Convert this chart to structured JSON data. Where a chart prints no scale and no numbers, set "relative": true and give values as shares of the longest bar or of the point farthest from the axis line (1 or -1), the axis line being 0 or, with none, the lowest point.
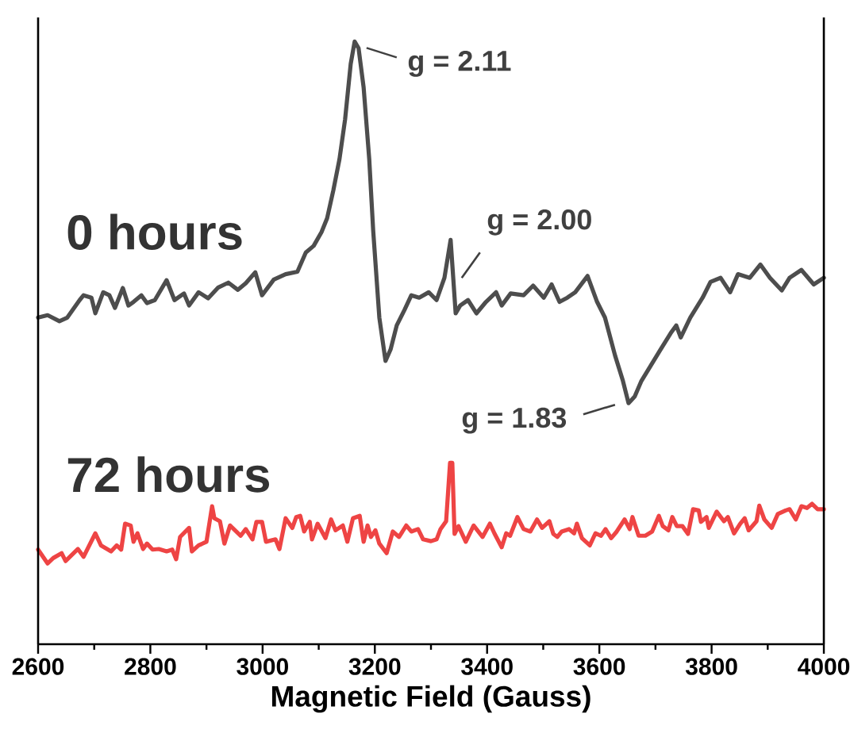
{
  "chart_data": {
    "type": "line",
    "xlabel": "Magnetic Field (Gauss)",
    "relative": true,
    "line_style": "solid",
    "marker": "none",
    "xlim": [
      2600,
      4000
    ],
    "xticks": [
      2600,
      {
        "value": 2700,
        "label": null
      },
      2800,
      {
        "value": 2900,
        "label": null
      },
      3000,
      {
        "value": 3100,
        "label": null
      },
      3200,
      {
        "value": 3300,
        "label": null
      },
      3400,
      {
        "value": 3500,
        "label": null
      },
      3600,
      {
        "value": 3700,
        "label": null
      },
      3800,
      {
        "value": 3900,
        "label": null
      },
      4000
    ],
    "series": [
      {
        "name": "0 hours",
        "color": "#4d4d4d",
        "x": [
          2600,
          2617,
          2638,
          2652,
          2674,
          2681,
          2695,
          2702,
          2716,
          2727,
          2737,
          2751,
          2761,
          2770,
          2784,
          2794,
          2808,
          2829,
          2843,
          2860,
          2869,
          2886,
          2903,
          2921,
          2939,
          2956,
          2970,
          2987,
          2999,
          3020,
          3041,
          3062,
          3077,
          3091,
          3105,
          3115,
          3126,
          3137,
          3147,
          3157,
          3164,
          3171,
          3180,
          3190,
          3197,
          3208,
          3219,
          3228,
          3239,
          3253,
          3265,
          3279,
          3296,
          3310,
          3324,
          3335,
          3344,
          3352,
          3366,
          3381,
          3398,
          3416,
          3426,
          3442,
          3465,
          3482,
          3501,
          3515,
          3529,
          3543,
          3557,
          3579,
          3596,
          3610,
          3628,
          3642,
          3652,
          3663,
          3675,
          3692,
          3709,
          3727,
          3737,
          3745,
          3762,
          3784,
          3798,
          3816,
          3833,
          3847,
          3868,
          3887,
          3904,
          3925,
          3939,
          3960,
          3982,
          4000
        ],
        "values": [
          0.542,
          0.546,
          0.536,
          0.542,
          0.571,
          0.579,
          0.575,
          0.549,
          0.584,
          0.579,
          0.558,
          0.591,
          0.562,
          0.568,
          0.579,
          0.566,
          0.571,
          0.604,
          0.571,
          0.582,
          0.562,
          0.584,
          0.574,
          0.592,
          0.6,
          0.588,
          0.599,
          0.617,
          0.579,
          0.605,
          0.614,
          0.618,
          0.65,
          0.661,
          0.684,
          0.707,
          0.753,
          0.805,
          0.871,
          0.963,
          1.0,
          0.989,
          0.924,
          0.805,
          0.687,
          0.542,
          0.47,
          0.489,
          0.529,
          0.555,
          0.579,
          0.575,
          0.584,
          0.571,
          0.608,
          0.671,
          0.549,
          0.562,
          0.571,
          0.549,
          0.568,
          0.584,
          0.562,
          0.582,
          0.579,
          0.595,
          0.575,
          0.597,
          0.568,
          0.575,
          0.584,
          0.611,
          0.568,
          0.542,
          0.479,
          0.437,
          0.4,
          0.411,
          0.437,
          0.463,
          0.489,
          0.516,
          0.529,
          0.509,
          0.542,
          0.575,
          0.601,
          0.608,
          0.584,
          0.614,
          0.608,
          0.63,
          0.608,
          0.587,
          0.608,
          0.621,
          0.597,
          0.608
        ]
      },
      {
        "name": "72 hours",
        "color": "#ee4444",
        "x": [
          2600,
          2617,
          2627,
          2642,
          2649,
          2671,
          2681,
          2702,
          2712,
          2730,
          2740,
          2748,
          2755,
          2765,
          2770,
          2777,
          2787,
          2794,
          2804,
          2815,
          2829,
          2839,
          2846,
          2853,
          2869,
          2874,
          2886,
          2900,
          2910,
          2914,
          2924,
          2932,
          2942,
          2961,
          2970,
          2982,
          2989,
          2999,
          3006,
          3023,
          3030,
          3041,
          3053,
          3060,
          3067,
          3074,
          3084,
          3088,
          3098,
          3112,
          3122,
          3130,
          3143,
          3151,
          3161,
          3173,
          3180,
          3187,
          3193,
          3201,
          3208,
          3221,
          3232,
          3243,
          3256,
          3265,
          3277,
          3286,
          3300,
          3310,
          3317,
          3327,
          3334,
          3338,
          3342,
          3349,
          3362,
          3376,
          3392,
          3405,
          3413,
          3426,
          3434,
          3441,
          3454,
          3465,
          3477,
          3489,
          3498,
          3511,
          3518,
          3525,
          3533,
          3546,
          3555,
          3560,
          3569,
          3583,
          3593,
          3603,
          3611,
          3621,
          3631,
          3645,
          3654,
          3659,
          3670,
          3682,
          3694,
          3706,
          3713,
          3723,
          3730,
          3738,
          3748,
          3758,
          3767,
          3777,
          3781,
          3791,
          3795,
          3809,
          3822,
          3829,
          3840,
          3851,
          3859,
          3866,
          3880,
          3885,
          3894,
          3907,
          3918,
          3932,
          3939,
          3950,
          3960,
          3970,
          3979,
          3989,
          4000
        ],
        "values": [
          0.157,
          0.134,
          0.143,
          0.151,
          0.138,
          0.158,
          0.145,
          0.184,
          0.164,
          0.154,
          0.164,
          0.157,
          0.2,
          0.197,
          0.17,
          0.184,
          0.158,
          0.167,
          0.157,
          0.158,
          0.154,
          0.157,
          0.141,
          0.178,
          0.193,
          0.154,
          0.164,
          0.17,
          0.229,
          0.209,
          0.204,
          0.167,
          0.197,
          0.18,
          0.191,
          0.174,
          0.203,
          0.203,
          0.17,
          0.174,
          0.158,
          0.209,
          0.193,
          0.211,
          0.213,
          0.187,
          0.203,
          0.174,
          0.2,
          0.176,
          0.207,
          0.189,
          0.197,
          0.17,
          0.209,
          0.213,
          0.17,
          0.197,
          0.178,
          0.189,
          0.167,
          0.151,
          0.187,
          0.178,
          0.197,
          0.187,
          0.191,
          0.174,
          0.171,
          0.174,
          0.191,
          0.204,
          0.301,
          0.301,
          0.183,
          0.196,
          0.17,
          0.197,
          0.178,
          0.2,
          0.184,
          0.161,
          0.184,
          0.18,
          0.211,
          0.191,
          0.187,
          0.207,
          0.193,
          0.204,
          0.183,
          0.178,
          0.187,
          0.191,
          0.184,
          0.2,
          0.176,
          0.164,
          0.184,
          0.18,
          0.191,
          0.176,
          0.187,
          0.207,
          0.191,
          0.211,
          0.18,
          0.18,
          0.187,
          0.213,
          0.196,
          0.189,
          0.211,
          0.196,
          0.196,
          0.183,
          0.224,
          0.222,
          0.203,
          0.211,
          0.193,
          0.22,
          0.204,
          0.211,
          0.184,
          0.2,
          0.209,
          0.189,
          0.204,
          0.23,
          0.207,
          0.193,
          0.216,
          0.222,
          0.224,
          0.207,
          0.229,
          0.226,
          0.233,
          0.224,
          0.224
        ]
      }
    ],
    "annotations": [
      {
        "text": "g = 2.11",
        "x": 3164,
        "y": 1.0
      },
      {
        "text": "g = 2.00",
        "x": 3335,
        "y": 0.671
      },
      {
        "text": "g = 1.83",
        "x": 3652,
        "y": 0.4
      }
    ]
  }
}
